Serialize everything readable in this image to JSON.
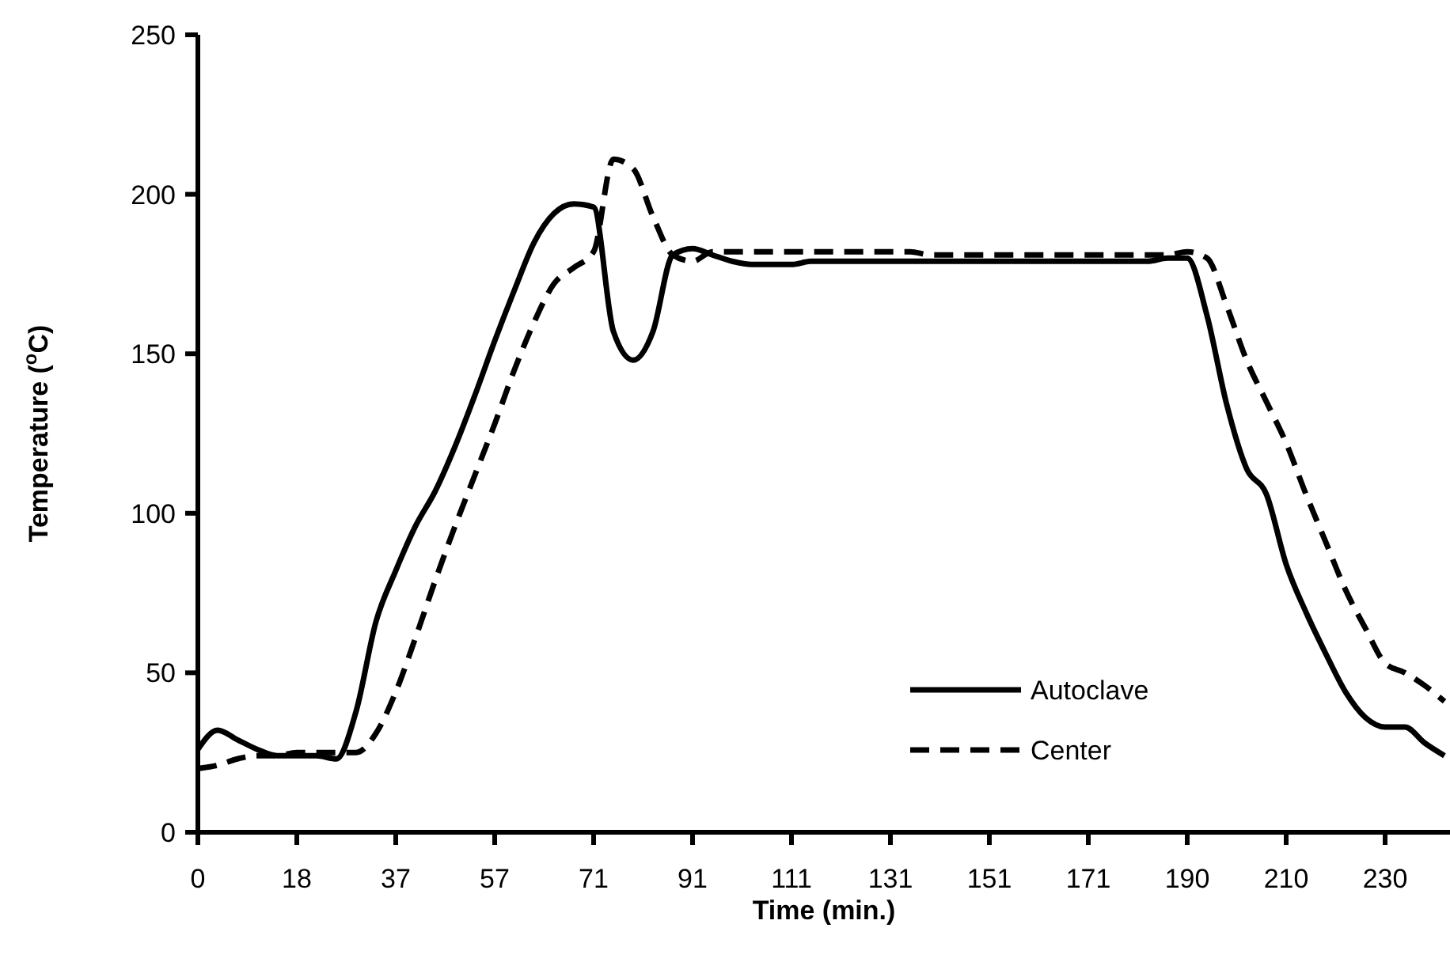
{
  "chart_data": {
    "type": "line",
    "xlabel": "Time (min.)",
    "ylabel": "Temperature ($^{o}$C)",
    "categories": [
      "0",
      null,
      null,
      null,
      null,
      "18",
      null,
      null,
      null,
      null,
      "37",
      null,
      null,
      null,
      null,
      "57",
      null,
      null,
      null,
      null,
      "71",
      null,
      null,
      null,
      null,
      "91",
      null,
      null,
      null,
      null,
      "111",
      null,
      null,
      null,
      null,
      "131",
      null,
      null,
      null,
      null,
      "151",
      null,
      null,
      null,
      null,
      "171",
      null,
      null,
      null,
      null,
      "190",
      null,
      null,
      null,
      null,
      "210",
      null,
      null,
      null,
      null,
      "230",
      null,
      null,
      null
    ],
    "ylim": [
      0,
      250
    ],
    "yticks": [
      0,
      50,
      100,
      150,
      200,
      250
    ],
    "legend": "bottom right",
    "series": [
      {
        "name": "Autoclave",
        "color": "#000000",
        "line_style": "solid",
        "values": [
          26,
          32,
          29,
          26,
          24,
          24,
          24,
          23,
          38,
          66,
          82,
          96,
          107,
          121,
          137,
          154,
          170,
          185,
          194,
          197,
          196,
          157,
          148,
          157,
          181,
          183,
          181,
          179,
          178,
          178,
          178,
          179,
          179,
          179,
          179,
          179,
          179,
          179,
          179,
          179,
          179,
          179,
          179,
          179,
          179,
          179,
          179,
          179,
          179,
          180,
          180,
          162,
          134,
          114,
          106,
          84,
          69,
          56,
          44,
          36,
          33,
          33,
          28,
          24
        ]
      },
      {
        "name": "Center",
        "color": "#000000",
        "line_style": "dashed",
        "values": [
          20,
          21,
          23,
          24,
          24,
          25,
          25,
          25,
          25,
          31,
          44,
          61,
          79,
          96,
          112,
          128,
          145,
          160,
          172,
          177,
          182,
          211,
          208,
          193,
          181,
          179,
          182,
          182,
          182,
          182,
          182,
          182,
          182,
          182,
          182,
          182,
          182,
          181,
          181,
          181,
          181,
          181,
          181,
          181,
          181,
          181,
          181,
          181,
          181,
          181,
          182,
          180,
          165,
          148,
          135,
          122,
          106,
          91,
          76,
          64,
          53,
          50,
          46,
          41
        ]
      }
    ]
  }
}
